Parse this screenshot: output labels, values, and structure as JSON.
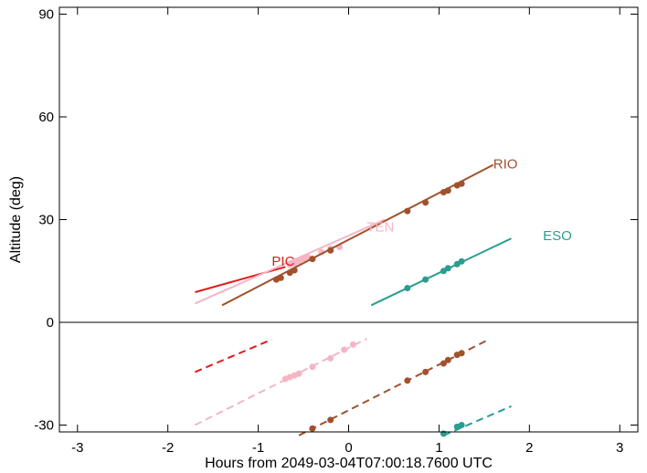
{
  "chart_data": {
    "type": "line",
    "title": "",
    "xlabel": "Hours from 2049-03-04T07:00:18.7600 UTC",
    "ylabel": "Altitude (deg)",
    "xlim": [
      -3.2,
      3.2
    ],
    "ylim": [
      -32,
      92
    ],
    "xticks": [
      -3,
      -2,
      -1,
      0,
      1,
      2,
      3
    ],
    "xtick_labels": [
      "-3",
      "-2",
      "-1",
      "0",
      "1",
      "2",
      "3"
    ],
    "yticks": [
      -30,
      0,
      30,
      60,
      90
    ],
    "ytick_labels": [
      "-30",
      "0",
      "30",
      "60",
      "90"
    ],
    "zero_line": 0,
    "grid": false,
    "series": [
      {
        "name": "PIC",
        "color": "#e31a1c",
        "label": {
          "x": -0.85,
          "y": 16.5
        },
        "segments": [
          {
            "style": "solid",
            "width": 2,
            "x": [
              -1.7,
              -0.7
            ],
            "y": [
              8.8,
              16.2
            ]
          },
          {
            "style": "dashed",
            "width": 2,
            "x": [
              -1.7,
              -0.85
            ],
            "y": [
              -14.5,
              -5.0
            ]
          }
        ],
        "points": []
      },
      {
        "name": "TEN",
        "color": "#f5b5c3",
        "label": {
          "x": 0.2,
          "y": 26.5
        },
        "segments": [
          {
            "style": "solid",
            "width": 2,
            "x": [
              -1.7,
              0.4
            ],
            "y": [
              5.5,
              30.0
            ]
          },
          {
            "style": "dashed",
            "width": 2,
            "x": [
              -1.7,
              0.2
            ],
            "y": [
              -30.0,
              -4.8
            ]
          }
        ],
        "points": [
          {
            "x": -0.65,
            "y": 16.8
          },
          {
            "x": -0.6,
            "y": 17.2
          },
          {
            "x": -0.55,
            "y": 17.8
          },
          {
            "x": -0.5,
            "y": 18.5
          },
          {
            "x": -0.45,
            "y": 19.0
          },
          {
            "x": -0.3,
            "y": 20.5
          },
          {
            "x": -0.2,
            "y": 21.5
          },
          {
            "x": -0.1,
            "y": 22.0
          },
          {
            "x": -0.7,
            "y": -16.5
          },
          {
            "x": -0.65,
            "y": -16.0
          },
          {
            "x": -0.6,
            "y": -15.5
          },
          {
            "x": -0.55,
            "y": -15.0
          },
          {
            "x": -0.4,
            "y": -13.0
          },
          {
            "x": -0.2,
            "y": -10.5
          },
          {
            "x": -0.05,
            "y": -8.0
          },
          {
            "x": 0.05,
            "y": -6.5
          }
        ]
      },
      {
        "name": "RIO",
        "color": "#a0522d",
        "label": {
          "x": 1.6,
          "y": 45.0
        },
        "segments": [
          {
            "style": "solid",
            "width": 2,
            "x": [
              -1.4,
              1.6
            ],
            "y": [
              5.0,
              46.0
            ]
          },
          {
            "style": "dashed",
            "width": 2,
            "x": [
              -0.55,
              1.55
            ],
            "y": [
              -33.0,
              -5.0
            ]
          }
        ],
        "points": [
          {
            "x": -0.8,
            "y": 12.5
          },
          {
            "x": -0.75,
            "y": 13.0
          },
          {
            "x": -0.65,
            "y": 14.5
          },
          {
            "x": -0.6,
            "y": 15.2
          },
          {
            "x": -0.4,
            "y": 18.5
          },
          {
            "x": -0.2,
            "y": 21.0
          },
          {
            "x": 0.65,
            "y": 32.5
          },
          {
            "x": 0.85,
            "y": 35.0
          },
          {
            "x": 1.05,
            "y": 38.0
          },
          {
            "x": 1.1,
            "y": 38.5
          },
          {
            "x": 1.2,
            "y": 40.0
          },
          {
            "x": 1.25,
            "y": 40.5
          },
          {
            "x": -0.4,
            "y": -31.0
          },
          {
            "x": -0.2,
            "y": -28.5
          },
          {
            "x": 0.65,
            "y": -17.0
          },
          {
            "x": 0.85,
            "y": -14.5
          },
          {
            "x": 1.05,
            "y": -12.0
          },
          {
            "x": 1.1,
            "y": -11.0
          },
          {
            "x": 1.2,
            "y": -9.5
          },
          {
            "x": 1.25,
            "y": -9.0
          }
        ]
      },
      {
        "name": "ESO",
        "color": "#2a9d8f",
        "label": {
          "x": 2.15,
          "y": 24.0
        },
        "segments": [
          {
            "style": "solid",
            "width": 2,
            "x": [
              0.25,
              1.8
            ],
            "y": [
              5.0,
              24.5
            ]
          },
          {
            "style": "dashed",
            "width": 2,
            "x": [
              1.05,
              1.8
            ],
            "y": [
              -33.0,
              -24.5
            ]
          }
        ],
        "points": [
          {
            "x": 0.65,
            "y": 10.0
          },
          {
            "x": 0.85,
            "y": 12.5
          },
          {
            "x": 1.05,
            "y": 15.0
          },
          {
            "x": 1.1,
            "y": 15.8
          },
          {
            "x": 1.2,
            "y": 17.0
          },
          {
            "x": 1.25,
            "y": 17.8
          },
          {
            "x": 1.05,
            "y": -32.5
          },
          {
            "x": 1.2,
            "y": -30.5
          },
          {
            "x": 1.25,
            "y": -30.0
          }
        ]
      }
    ]
  }
}
